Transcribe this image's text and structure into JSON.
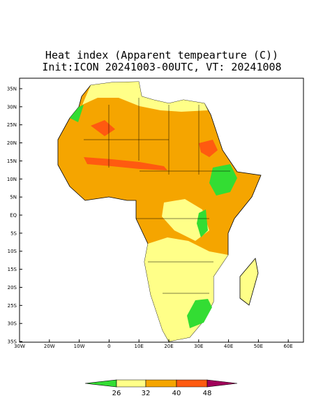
{
  "title": "Heat index (Apparent tempearture (C))",
  "subtitle": "Init:ICON 20241003-00UTC, VT: 20241008",
  "lon_ticks": [
    "30W",
    "20W",
    "10W",
    "0",
    "10E",
    "20E",
    "30E",
    "40E",
    "50E",
    "60E"
  ],
  "lat_ticks": [
    "35N",
    "30N",
    "25N",
    "20N",
    "15N",
    "10N",
    "5N",
    "EQ",
    "5S",
    "10S",
    "15S",
    "20S",
    "25S",
    "30S",
    "35S"
  ],
  "colorbar": {
    "labels": [
      26,
      32,
      40,
      48
    ],
    "colors": [
      "#33dd33",
      "#ffff88",
      "#f5a500",
      "#ff5a10",
      "#a0005a"
    ]
  }
}
